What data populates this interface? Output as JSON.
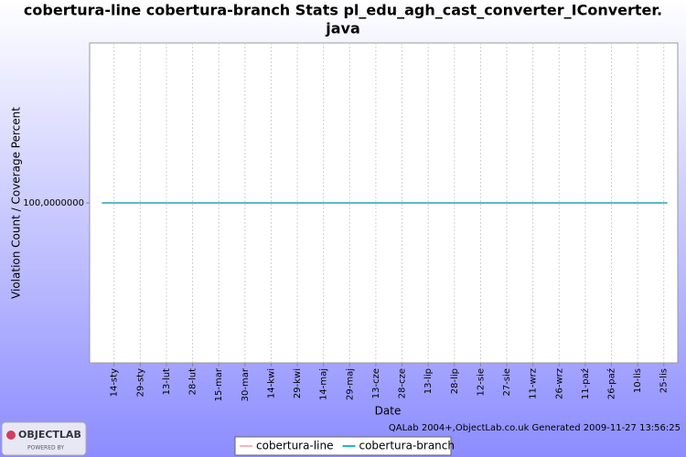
{
  "chart_data": {
    "type": "line",
    "title_lines": [
      "cobertura-line cobertura-branch  Stats pl_edu_agh_cast_converter_IConverter.",
      "java"
    ],
    "xlabel": "Date",
    "ylabel": "Violation Count / Coverage Percent",
    "x": [
      7,
      331
    ],
    "series": [
      {
        "name": "cobertura-line",
        "color": "#f4b4c0",
        "values": [
          100,
          100
        ]
      },
      {
        "name": "cobertura-branch",
        "color": "#20b8c8",
        "values": [
          100,
          100
        ]
      }
    ],
    "xlim": [
      0,
      337
    ],
    "ylim": [
      99,
      101
    ],
    "xticks": [
      {
        "value": 14,
        "label": "14-sty"
      },
      {
        "value": 29,
        "label": "29-sty"
      },
      {
        "value": 44,
        "label": "13-lut"
      },
      {
        "value": 59,
        "label": "28-lut"
      },
      {
        "value": 74,
        "label": "15-mar"
      },
      {
        "value": 89,
        "label": "30-mar"
      },
      {
        "value": 104,
        "label": "14-kwi"
      },
      {
        "value": 119,
        "label": "29-kwi"
      },
      {
        "value": 134,
        "label": "14-maj"
      },
      {
        "value": 149,
        "label": "29-maj"
      },
      {
        "value": 164,
        "label": "13-cze"
      },
      {
        "value": 179,
        "label": "28-cze"
      },
      {
        "value": 194,
        "label": "13-lip"
      },
      {
        "value": 209,
        "label": "28-lip"
      },
      {
        "value": 224,
        "label": "12-sie"
      },
      {
        "value": 239,
        "label": "27-sie"
      },
      {
        "value": 254,
        "label": "11-wrz"
      },
      {
        "value": 269,
        "label": "26-wrz"
      },
      {
        "value": 284,
        "label": "11-paź"
      },
      {
        "value": 299,
        "label": "26-paź"
      },
      {
        "value": 314,
        "label": "10-lis"
      },
      {
        "value": 329,
        "label": "25-lis"
      }
    ],
    "yticks": [
      {
        "value": 100,
        "label": "100,0000000"
      }
    ],
    "grid": true,
    "legend": "bottom"
  },
  "footer": "QALab 2004+,ObjectLab.co.uk Generated 2009-11-27 13:56:25",
  "logo": {
    "text": "OBJECTLAB",
    "subtext": "POWERED BY"
  }
}
